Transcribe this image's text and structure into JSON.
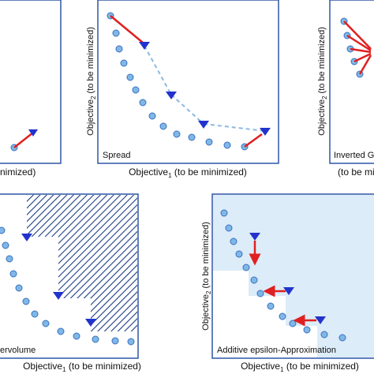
{
  "colors": {
    "frame": "#2e57a6",
    "point_fill": "#7fb8e6",
    "point_stroke": "#3a6fc0",
    "reference": "#2233cc",
    "arrow": "#e02020",
    "dash": "#8ab8e0",
    "shade": "#dcecf8",
    "hatch": "#1c3d86"
  },
  "axis": {
    "y_label": "Objective",
    "y_sub": "2",
    "y_suffix": " (to be minimized)",
    "x_label": "Objective",
    "x_sub": "1",
    "x_suffix": " (to be minimized)",
    "x_partial": "nimized)",
    "x_partial_right": "(to be minimized)"
  },
  "panels": {
    "spread": {
      "name": "Spread"
    },
    "igd": {
      "name": "Inverted G"
    },
    "hypervolume": {
      "name": "ervolume"
    },
    "epsilon": {
      "name": "Additive epsilon-Approximation"
    }
  }
}
